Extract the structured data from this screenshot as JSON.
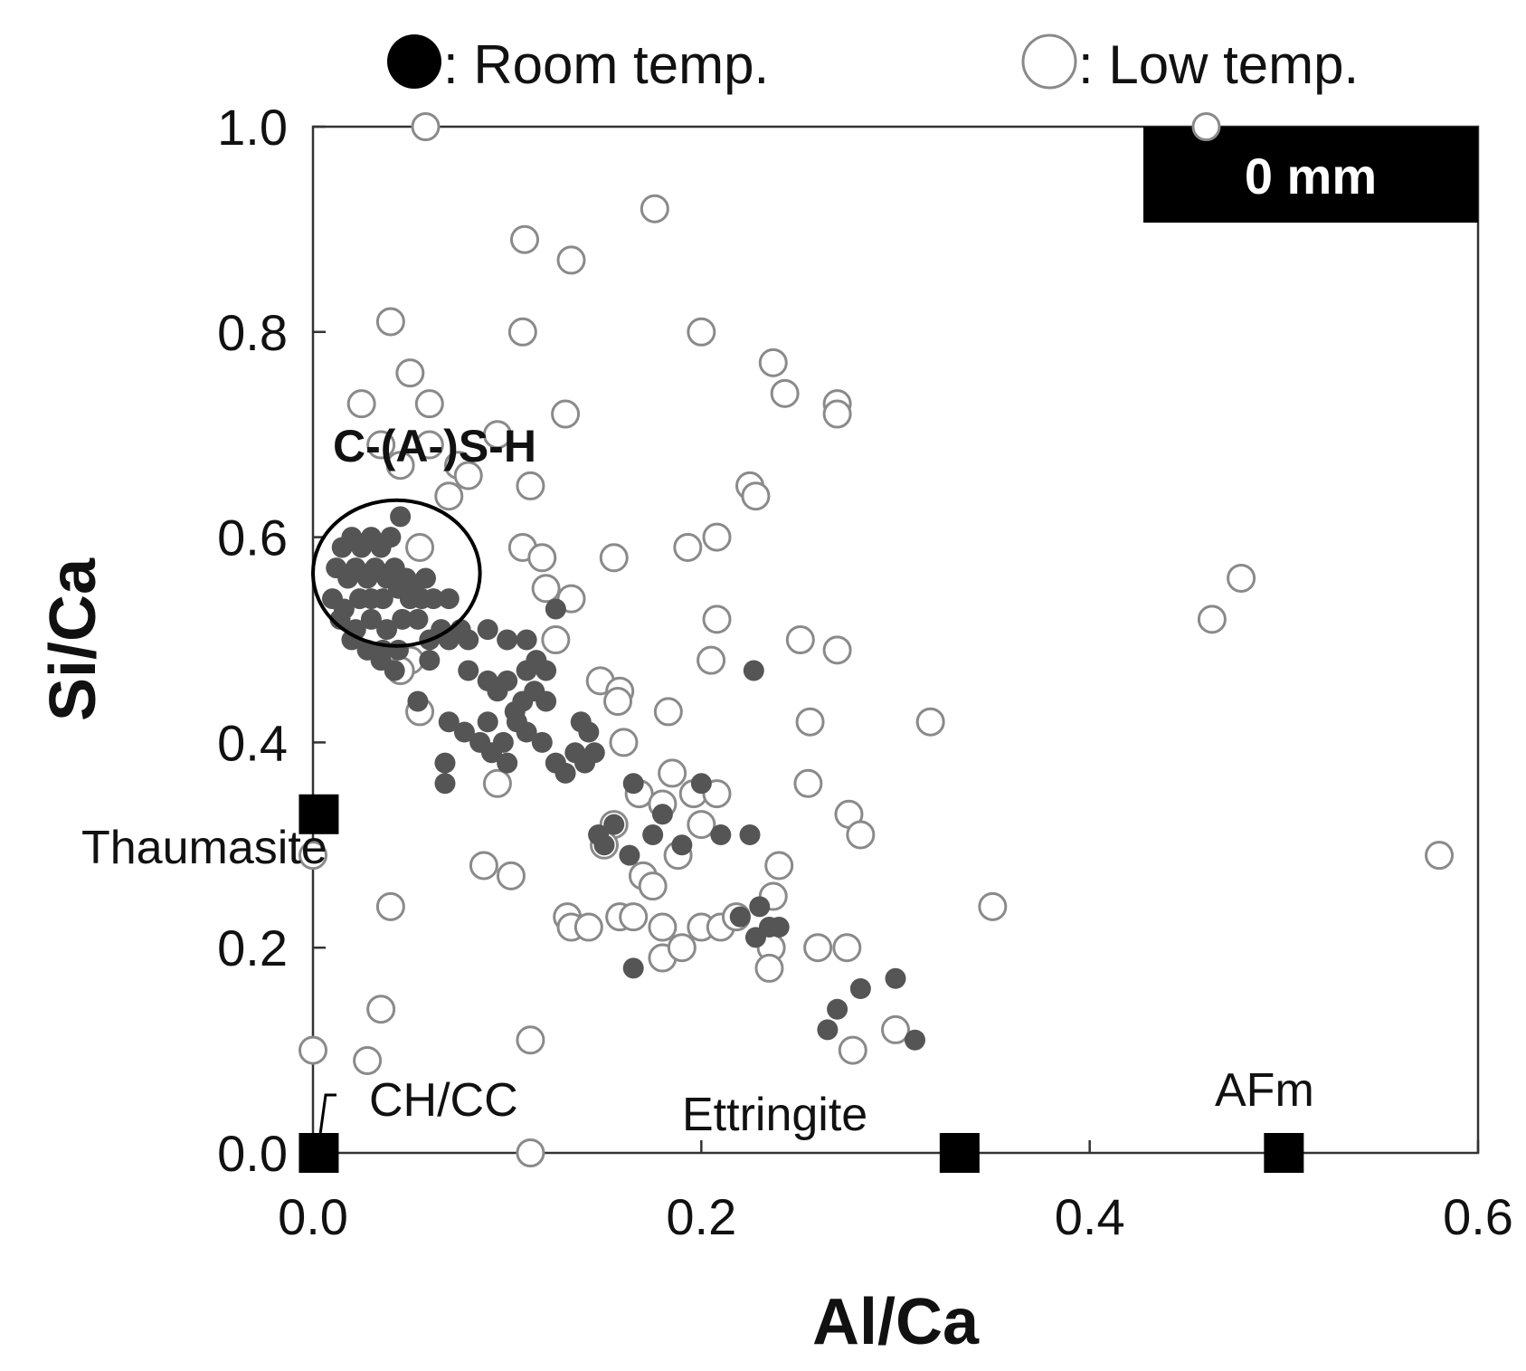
{
  "legend": {
    "room_label": ": Room temp.",
    "low_label": ": Low temp."
  },
  "panel_label": "0 mm",
  "colors": {
    "room_fill": "#555555",
    "low_stroke": "#8a8a8a",
    "reference": "#000000",
    "axis": "#333333"
  },
  "chart_data": {
    "type": "scatter",
    "title": "",
    "xlabel": "Al/Ca",
    "ylabel": "Si/Ca",
    "xlim": [
      0,
      0.6
    ],
    "ylim": [
      0,
      1.0
    ],
    "xticks": [
      "0.0",
      "0.2",
      "0.4",
      "0.6"
    ],
    "yticks": [
      "0.0",
      "0.2",
      "0.4",
      "0.6",
      "0.8",
      "1.0"
    ],
    "xtick_values": [
      0,
      0.2,
      0.4,
      0.6
    ],
    "ytick_values": [
      0,
      0.2,
      0.4,
      0.6,
      0.8,
      1.0
    ],
    "series": [
      {
        "name": "Room temp.",
        "marker": "filled-circle",
        "points": [
          [
            0.015,
            0.59
          ],
          [
            0.02,
            0.6
          ],
          [
            0.025,
            0.59
          ],
          [
            0.03,
            0.6
          ],
          [
            0.035,
            0.59
          ],
          [
            0.04,
            0.6
          ],
          [
            0.045,
            0.62
          ],
          [
            0.012,
            0.57
          ],
          [
            0.018,
            0.56
          ],
          [
            0.022,
            0.57
          ],
          [
            0.028,
            0.56
          ],
          [
            0.032,
            0.57
          ],
          [
            0.038,
            0.56
          ],
          [
            0.042,
            0.57
          ],
          [
            0.048,
            0.56
          ],
          [
            0.052,
            0.55
          ],
          [
            0.058,
            0.56
          ],
          [
            0.01,
            0.54
          ],
          [
            0.016,
            0.53
          ],
          [
            0.024,
            0.54
          ],
          [
            0.03,
            0.54
          ],
          [
            0.036,
            0.54
          ],
          [
            0.044,
            0.55
          ],
          [
            0.05,
            0.54
          ],
          [
            0.056,
            0.54
          ],
          [
            0.062,
            0.54
          ],
          [
            0.07,
            0.54
          ],
          [
            0.014,
            0.52
          ],
          [
            0.022,
            0.51
          ],
          [
            0.03,
            0.52
          ],
          [
            0.038,
            0.51
          ],
          [
            0.046,
            0.52
          ],
          [
            0.054,
            0.52
          ],
          [
            0.066,
            0.51
          ],
          [
            0.076,
            0.51
          ],
          [
            0.02,
            0.5
          ],
          [
            0.028,
            0.49
          ],
          [
            0.036,
            0.49
          ],
          [
            0.044,
            0.49
          ],
          [
            0.06,
            0.5
          ],
          [
            0.07,
            0.5
          ],
          [
            0.08,
            0.5
          ],
          [
            0.09,
            0.51
          ],
          [
            0.1,
            0.5
          ],
          [
            0.11,
            0.47
          ],
          [
            0.115,
            0.48
          ],
          [
            0.125,
            0.53
          ],
          [
            0.11,
            0.5
          ],
          [
            0.035,
            0.48
          ],
          [
            0.042,
            0.47
          ],
          [
            0.06,
            0.48
          ],
          [
            0.08,
            0.47
          ],
          [
            0.09,
            0.46
          ],
          [
            0.095,
            0.45
          ],
          [
            0.1,
            0.46
          ],
          [
            0.108,
            0.44
          ],
          [
            0.12,
            0.44
          ],
          [
            0.07,
            0.42
          ],
          [
            0.078,
            0.41
          ],
          [
            0.086,
            0.4
          ],
          [
            0.092,
            0.39
          ],
          [
            0.1,
            0.38
          ],
          [
            0.105,
            0.42
          ],
          [
            0.11,
            0.41
          ],
          [
            0.118,
            0.4
          ],
          [
            0.125,
            0.38
          ],
          [
            0.13,
            0.37
          ],
          [
            0.135,
            0.39
          ],
          [
            0.14,
            0.38
          ],
          [
            0.145,
            0.39
          ],
          [
            0.138,
            0.42
          ],
          [
            0.142,
            0.41
          ],
          [
            0.098,
            0.4
          ],
          [
            0.104,
            0.43
          ],
          [
            0.054,
            0.44
          ],
          [
            0.068,
            0.38
          ],
          [
            0.068,
            0.36
          ],
          [
            0.09,
            0.42
          ],
          [
            0.12,
            0.47
          ],
          [
            0.114,
            0.45
          ],
          [
            0.147,
            0.31
          ],
          [
            0.15,
            0.3
          ],
          [
            0.155,
            0.32
          ],
          [
            0.163,
            0.29
          ],
          [
            0.165,
            0.36
          ],
          [
            0.175,
            0.31
          ],
          [
            0.18,
            0.33
          ],
          [
            0.2,
            0.36
          ],
          [
            0.19,
            0.3
          ],
          [
            0.21,
            0.31
          ],
          [
            0.165,
            0.18
          ],
          [
            0.227,
            0.47
          ],
          [
            0.225,
            0.31
          ],
          [
            0.22,
            0.23
          ],
          [
            0.228,
            0.21
          ],
          [
            0.235,
            0.22
          ],
          [
            0.23,
            0.24
          ],
          [
            0.24,
            0.22
          ],
          [
            0.282,
            0.16
          ],
          [
            0.3,
            0.17
          ],
          [
            0.27,
            0.14
          ],
          [
            0.265,
            0.12
          ],
          [
            0.31,
            0.11
          ]
        ]
      },
      {
        "name": "Low temp.",
        "marker": "open-circle",
        "points": [
          [
            0.058,
            1.0
          ],
          [
            0.176,
            0.92
          ],
          [
            0.109,
            0.89
          ],
          [
            0.133,
            0.87
          ],
          [
            0.04,
            0.81
          ],
          [
            0.108,
            0.8
          ],
          [
            0.2,
            0.8
          ],
          [
            0.237,
            0.77
          ],
          [
            0.243,
            0.74
          ],
          [
            0.27,
            0.73
          ],
          [
            0.27,
            0.72
          ],
          [
            0.025,
            0.73
          ],
          [
            0.05,
            0.76
          ],
          [
            0.06,
            0.73
          ],
          [
            0.13,
            0.72
          ],
          [
            0.035,
            0.69
          ],
          [
            0.045,
            0.67
          ],
          [
            0.06,
            0.69
          ],
          [
            0.075,
            0.67
          ],
          [
            0.08,
            0.66
          ],
          [
            0.07,
            0.64
          ],
          [
            0.112,
            0.65
          ],
          [
            0.095,
            0.7
          ],
          [
            0.225,
            0.65
          ],
          [
            0.228,
            0.64
          ],
          [
            0.055,
            0.59
          ],
          [
            0.108,
            0.59
          ],
          [
            0.118,
            0.58
          ],
          [
            0.155,
            0.58
          ],
          [
            0.193,
            0.59
          ],
          [
            0.208,
            0.6
          ],
          [
            0.12,
            0.55
          ],
          [
            0.133,
            0.54
          ],
          [
            0.208,
            0.52
          ],
          [
            0.125,
            0.5
          ],
          [
            0.205,
            0.48
          ],
          [
            0.251,
            0.5
          ],
          [
            0.27,
            0.49
          ],
          [
            0.05,
            0.48
          ],
          [
            0.045,
            0.47
          ],
          [
            0.148,
            0.46
          ],
          [
            0.158,
            0.45
          ],
          [
            0.157,
            0.44
          ],
          [
            0.183,
            0.43
          ],
          [
            0.256,
            0.42
          ],
          [
            0.318,
            0.42
          ],
          [
            0.055,
            0.43
          ],
          [
            0.16,
            0.4
          ],
          [
            0.095,
            0.36
          ],
          [
            0.185,
            0.37
          ],
          [
            0.196,
            0.35
          ],
          [
            0.208,
            0.35
          ],
          [
            0.168,
            0.35
          ],
          [
            0.18,
            0.34
          ],
          [
            0.255,
            0.36
          ],
          [
            0.276,
            0.33
          ],
          [
            0.282,
            0.31
          ],
          [
            0.155,
            0.32
          ],
          [
            0.15,
            0.3
          ],
          [
            0.2,
            0.32
          ],
          [
            0.24,
            0.28
          ],
          [
            0.188,
            0.29
          ],
          [
            0.17,
            0.27
          ],
          [
            0.175,
            0.26
          ],
          [
            0.237,
            0.25
          ],
          [
            0.088,
            0.28
          ],
          [
            0.102,
            0.27
          ],
          [
            0.04,
            0.24
          ],
          [
            0.131,
            0.23
          ],
          [
            0.133,
            0.22
          ],
          [
            0.142,
            0.22
          ],
          [
            0.158,
            0.23
          ],
          [
            0.165,
            0.23
          ],
          [
            0.18,
            0.22
          ],
          [
            0.2,
            0.22
          ],
          [
            0.21,
            0.22
          ],
          [
            0.218,
            0.23
          ],
          [
            0.236,
            0.2
          ],
          [
            0.235,
            0.18
          ],
          [
            0.18,
            0.19
          ],
          [
            0.19,
            0.2
          ],
          [
            0.26,
            0.2
          ],
          [
            0.275,
            0.2
          ],
          [
            0.35,
            0.24
          ],
          [
            0.3,
            0.12
          ],
          [
            0.278,
            0.1
          ],
          [
            0.112,
            0.11
          ],
          [
            0.035,
            0.14
          ],
          [
            0.028,
            0.09
          ],
          [
            0.0,
            0.1
          ],
          [
            0.112,
            0.0
          ],
          [
            0.0,
            0.29
          ],
          [
            0.463,
            0.52
          ],
          [
            0.478,
            0.56
          ],
          [
            0.58,
            0.29
          ],
          [
            0.46,
            1.0
          ]
        ]
      },
      {
        "name": "Reference phases",
        "marker": "filled-square",
        "points": [
          {
            "label": "Thaumasite",
            "x": 0.003,
            "y": 0.33
          },
          {
            "label": "CH/CC",
            "x": 0.003,
            "y": 0.0
          },
          {
            "label": "Ettringite",
            "x": 0.333,
            "y": 0.0
          },
          {
            "label": "AFm",
            "x": 0.5,
            "y": 0.0
          }
        ]
      }
    ],
    "annotations": [
      {
        "text": "C-(A-)S-H",
        "shape": "circle",
        "center": [
          0.043,
          0.565
        ],
        "radius_x": 0.043,
        "radius_y": 0.071
      }
    ]
  }
}
